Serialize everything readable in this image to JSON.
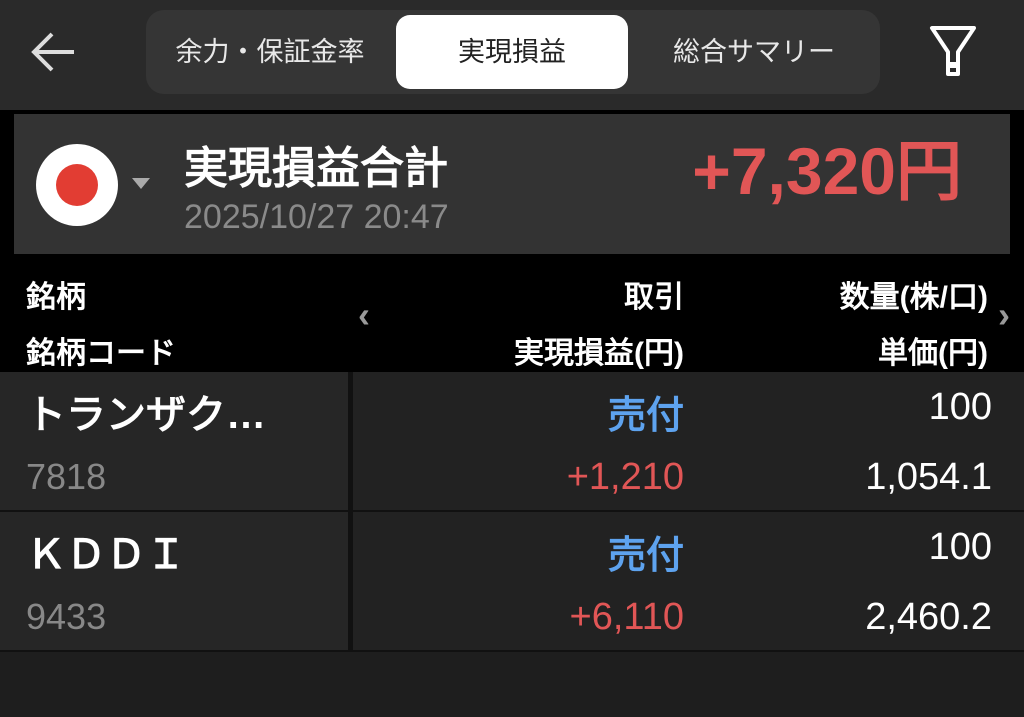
{
  "nav": {
    "back_icon": "arrow-left-icon",
    "filter_icon": "filter-icon",
    "tabs": [
      {
        "label": "余力・保証金率",
        "active": false
      },
      {
        "label": "実現損益",
        "active": true
      },
      {
        "label": "総合サマリー",
        "active": false
      }
    ]
  },
  "summary": {
    "market_icon": "japan-flag-icon",
    "title": "実現損益合計",
    "datetime": "2025/10/27 20:47",
    "total": "+7,320円"
  },
  "header": {
    "col1_top": "銘柄",
    "col1_bottom": "銘柄コード",
    "col2_top": "取引",
    "col2_bottom": "実現損益(円)",
    "col3_top": "数量(株/口)",
    "col3_bottom": "単価(円)"
  },
  "rows": [
    {
      "name": "トランザク…",
      "code": "7818",
      "trade": "売付",
      "pl": "+1,210",
      "qty": "100",
      "price": "1,054.1"
    },
    {
      "name": "ＫＤＤＩ",
      "code": "9433",
      "trade": "売付",
      "pl": "+6,110",
      "qty": "100",
      "price": "2,460.2"
    }
  ],
  "colors": {
    "profit": "#e15656",
    "sell": "#5ea3ef",
    "flag_red": "#e23d33"
  }
}
